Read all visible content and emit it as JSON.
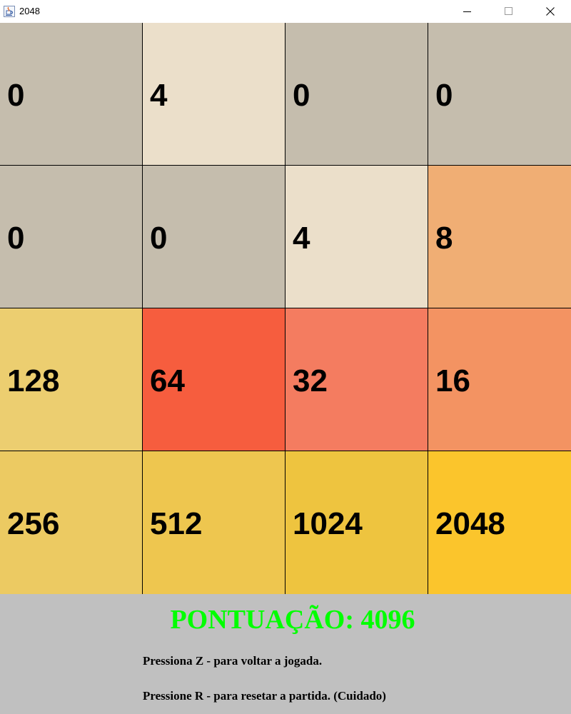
{
  "window": {
    "title": "2048",
    "icon": "java-icon",
    "controls": {
      "minimize": "minimize-icon",
      "maximize": "maximize-icon",
      "close": "close-icon"
    }
  },
  "board": {
    "tiles": [
      {
        "value": "0",
        "color": "#c5bdad"
      },
      {
        "value": "4",
        "color": "#ebdfca"
      },
      {
        "value": "0",
        "color": "#c5bdad"
      },
      {
        "value": "0",
        "color": "#c5bdad"
      },
      {
        "value": "0",
        "color": "#c5bdad"
      },
      {
        "value": "0",
        "color": "#c5bdad"
      },
      {
        "value": "4",
        "color": "#ebdfca"
      },
      {
        "value": "8",
        "color": "#f0ae74"
      },
      {
        "value": "128",
        "color": "#ecce70"
      },
      {
        "value": "64",
        "color": "#f65d3e"
      },
      {
        "value": "32",
        "color": "#f47c60"
      },
      {
        "value": "16",
        "color": "#f39362"
      },
      {
        "value": "256",
        "color": "#ecca62"
      },
      {
        "value": "512",
        "color": "#eec64f"
      },
      {
        "value": "1024",
        "color": "#eec43f"
      },
      {
        "value": "2048",
        "color": "#fbc52c"
      }
    ]
  },
  "footer": {
    "background": "#c0c0c0",
    "score_label": "PONTUAÇÃO: 4096",
    "score_color": "#00ff00",
    "instruction_undo": "Pressiona Z - para voltar a jogada.",
    "instruction_reset": "Pressione R - para resetar a partida. (Cuidado)"
  }
}
